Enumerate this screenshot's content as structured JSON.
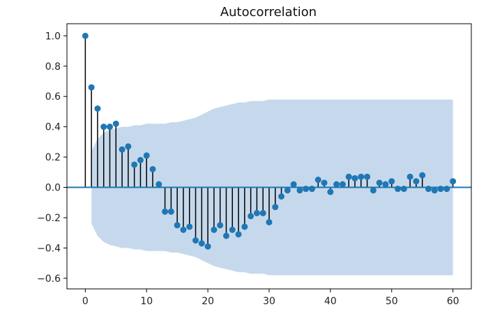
{
  "chart_data": {
    "type": "stem",
    "title": "Autocorrelation",
    "xlabel": "",
    "ylabel": "",
    "xlim": [
      -3.0,
      63.0
    ],
    "ylim": [
      -0.67,
      1.08
    ],
    "x_ticks": [
      0,
      10,
      20,
      30,
      40,
      50,
      60
    ],
    "y_ticks": [
      1.0,
      0.8,
      0.6,
      0.4,
      0.2,
      0.0,
      -0.2,
      -0.4,
      -0.6
    ],
    "x_tick_labels": [
      "0",
      "10",
      "20",
      "30",
      "40",
      "50",
      "60"
    ],
    "y_tick_labels": [
      "1.0",
      "0.8",
      "0.6",
      "0.4",
      "0.2",
      "0.0",
      "−0.2",
      "−0.4",
      "−0.6"
    ],
    "grid": false,
    "lags": [
      0,
      1,
      2,
      3,
      4,
      5,
      6,
      7,
      8,
      9,
      10,
      11,
      12,
      13,
      14,
      15,
      16,
      17,
      18,
      19,
      20,
      21,
      22,
      23,
      24,
      25,
      26,
      27,
      28,
      29,
      30,
      31,
      32,
      33,
      34,
      35,
      36,
      37,
      38,
      39,
      40,
      41,
      42,
      43,
      44,
      45,
      46,
      47,
      48,
      49,
      50,
      51,
      52,
      53,
      54,
      55,
      56,
      57,
      58,
      59,
      60
    ],
    "values": [
      1.0,
      0.66,
      0.52,
      0.4,
      0.4,
      0.42,
      0.25,
      0.27,
      0.15,
      0.18,
      0.21,
      0.12,
      0.02,
      -0.16,
      -0.16,
      -0.25,
      -0.28,
      -0.26,
      -0.35,
      -0.37,
      -0.39,
      -0.28,
      -0.25,
      -0.32,
      -0.28,
      -0.31,
      -0.26,
      -0.19,
      -0.17,
      -0.17,
      -0.23,
      -0.13,
      -0.06,
      -0.02,
      0.02,
      -0.02,
      -0.01,
      -0.01,
      0.05,
      0.03,
      -0.03,
      0.02,
      0.02,
      0.07,
      0.06,
      0.07,
      0.07,
      -0.02,
      0.03,
      0.02,
      0.04,
      -0.01,
      -0.01,
      0.07,
      0.04,
      0.08,
      -0.01,
      -0.02,
      -0.01,
      -0.01,
      0.04
    ],
    "confidence_band": {
      "lags": [
        1,
        2,
        3,
        4,
        5,
        6,
        7,
        8,
        9,
        10,
        11,
        12,
        13,
        14,
        15,
        16,
        17,
        18,
        19,
        20,
        21,
        22,
        23,
        24,
        25,
        26,
        27,
        28,
        29,
        30,
        31,
        32,
        33,
        34,
        35,
        40,
        45,
        50,
        55,
        60
      ],
      "upper": [
        0.24,
        0.32,
        0.36,
        0.38,
        0.39,
        0.4,
        0.4,
        0.41,
        0.41,
        0.42,
        0.42,
        0.42,
        0.42,
        0.43,
        0.43,
        0.44,
        0.45,
        0.46,
        0.48,
        0.5,
        0.52,
        0.53,
        0.54,
        0.55,
        0.56,
        0.56,
        0.57,
        0.57,
        0.57,
        0.58,
        0.58,
        0.58,
        0.58,
        0.58,
        0.58,
        0.58,
        0.58,
        0.58,
        0.58,
        0.58
      ],
      "lower": [
        -0.24,
        -0.32,
        -0.36,
        -0.38,
        -0.39,
        -0.4,
        -0.4,
        -0.41,
        -0.41,
        -0.42,
        -0.42,
        -0.42,
        -0.42,
        -0.43,
        -0.43,
        -0.44,
        -0.45,
        -0.46,
        -0.48,
        -0.5,
        -0.52,
        -0.53,
        -0.54,
        -0.55,
        -0.56,
        -0.56,
        -0.57,
        -0.57,
        -0.57,
        -0.58,
        -0.58,
        -0.58,
        -0.58,
        -0.58,
        -0.58,
        -0.58,
        -0.58,
        -0.58,
        -0.58,
        -0.58
      ]
    },
    "colors": {
      "marker": "#1f77b4",
      "stem": "#000000",
      "zero_line": "#1f77b4",
      "band": "#c6d9ec",
      "axes": "#000000"
    }
  }
}
